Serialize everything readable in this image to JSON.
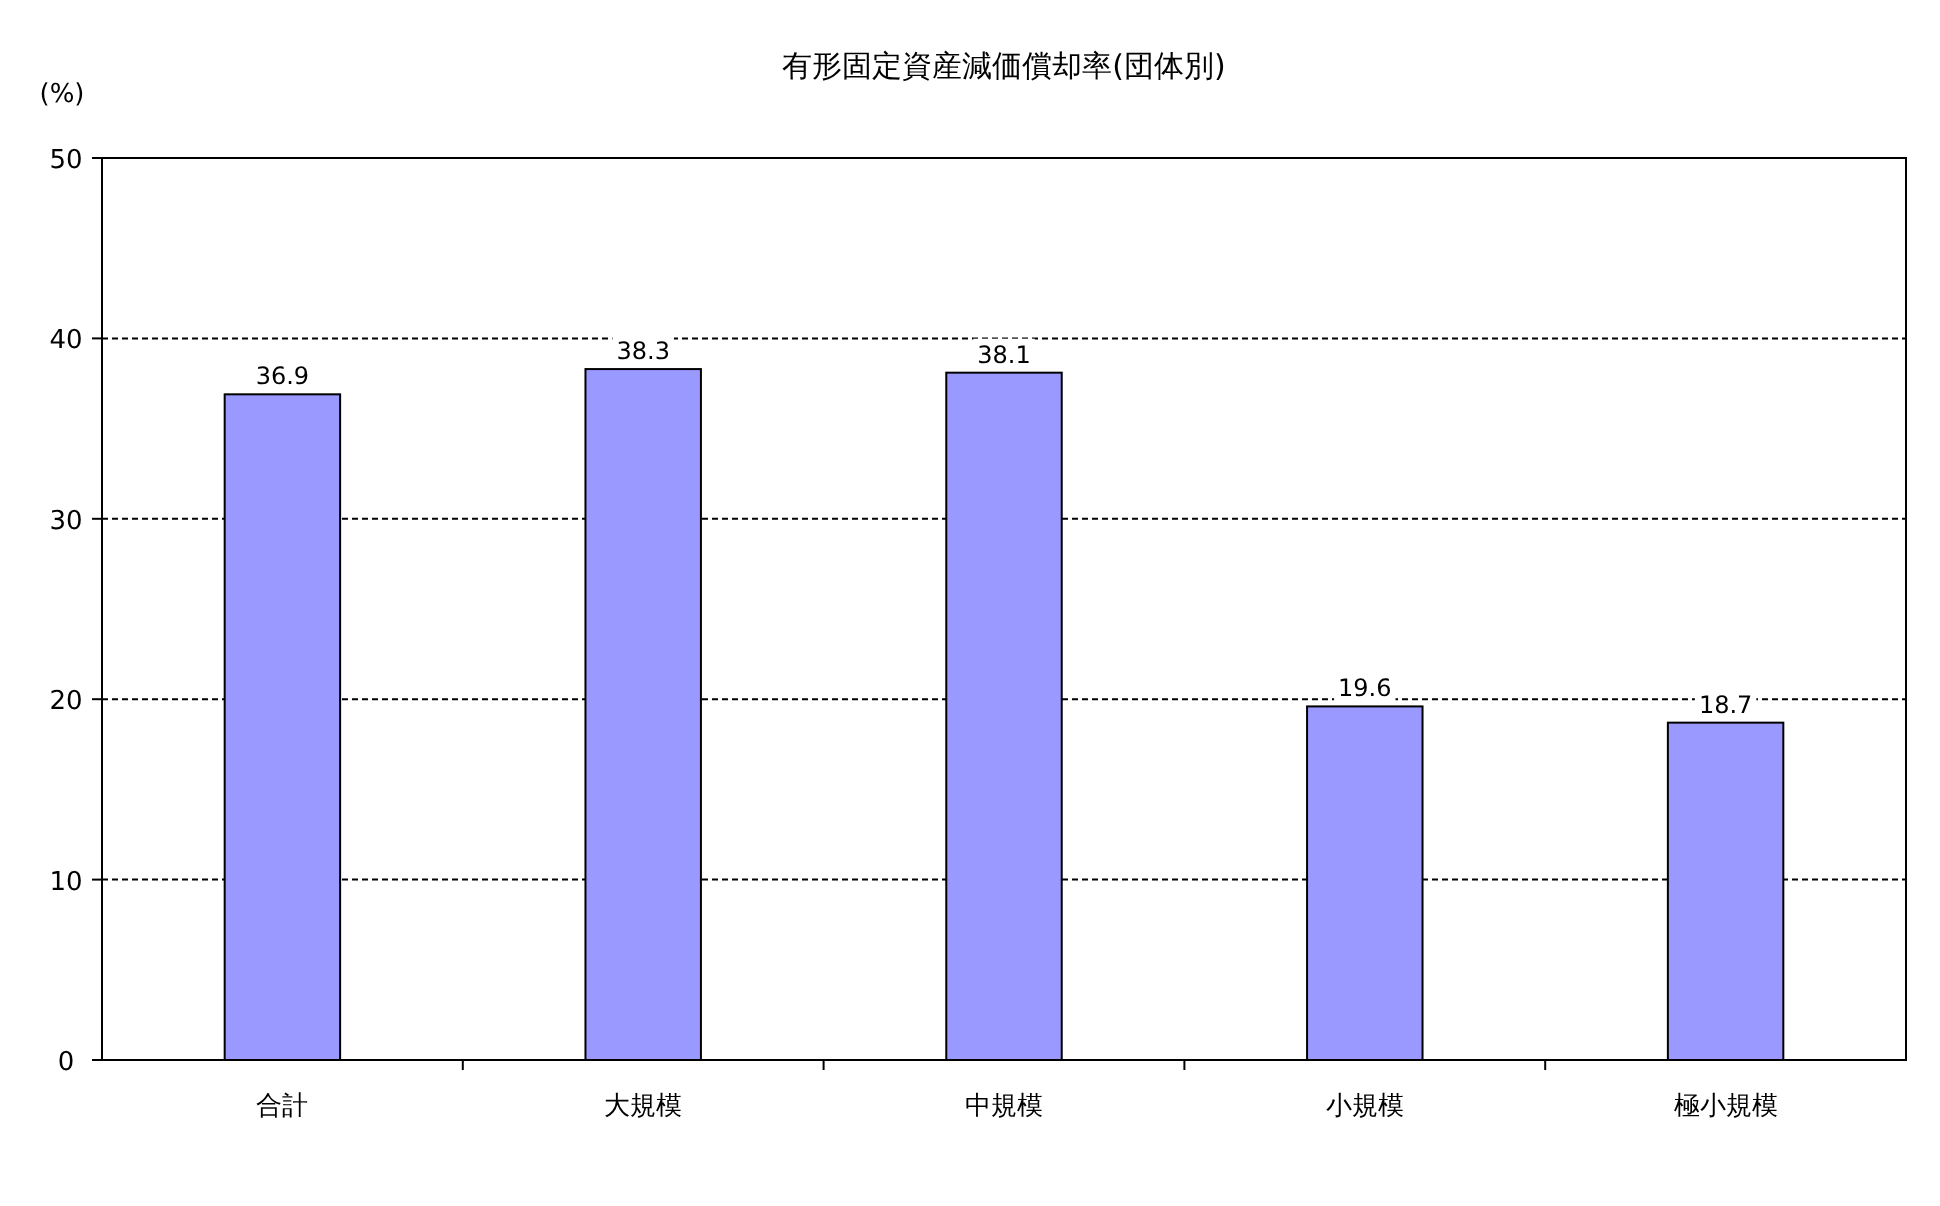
{
  "chart_data": {
    "type": "bar",
    "title": "有形固定資産減価償却率(団体別)",
    "ylabel": "(%)",
    "categories": [
      "合計",
      "大規模",
      "中規模",
      "小規模",
      "極小規模"
    ],
    "values": [
      36.9,
      38.3,
      38.1,
      19.6,
      18.7
    ],
    "color": "#9999ff",
    "ylim": [
      0,
      50
    ],
    "yticks": [
      0,
      10,
      20,
      30,
      40,
      50
    ],
    "grid": "y",
    "data_labels": true
  }
}
